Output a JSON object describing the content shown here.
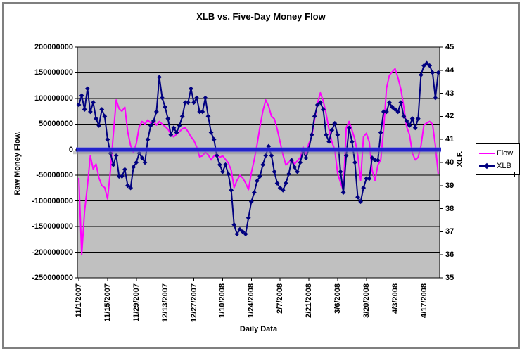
{
  "chart_data": {
    "type": "line",
    "title": "XLB vs. Five-Day Money Flow",
    "x_axis": {
      "label": "Daily Data",
      "tick_interval": 10,
      "tick_labels": [
        "11/1/2007",
        "11/15/2007",
        "11/29/2007",
        "12/13/2007",
        "12/27/2007",
        "1/10/2008",
        "1/24/2008",
        "2/7/2008",
        "2/21/2008",
        "3/6/2008",
        "3/20/2008",
        "4/3/2008",
        "4/17/2008"
      ]
    },
    "y_left": {
      "label": "Raw Money Flow.",
      "min": -250000000,
      "max": 200000000,
      "tick_step": 50000000,
      "tick_labels": [
        "200000000",
        "150000000",
        "100000000",
        "50000000",
        "0",
        "-50000000",
        "-100000000",
        "-150000000",
        "-200000000",
        "-250000000"
      ]
    },
    "y_right": {
      "label": "XLF.",
      "min": 35,
      "max": 45,
      "tick_step": 1,
      "tick_labels": [
        "45",
        "44",
        "43",
        "42",
        "41",
        "40",
        "39",
        "38",
        "37",
        "36",
        "35"
      ]
    },
    "grid": true,
    "plot_bg": "#C0C0C0",
    "grid_color": "#000000",
    "zero_line": {
      "value": 0,
      "color": "#2222CC",
      "halo": "#5b5be4"
    },
    "legend": {
      "position": "right",
      "entries": [
        {
          "name": "Flow",
          "color": "#FF00FF",
          "marker": "none"
        },
        {
          "name": "XLB",
          "color": "#000080",
          "marker": "diamond"
        }
      ]
    },
    "x": [
      "11/1/2007",
      "11/2/2007",
      "11/5/2007",
      "11/6/2007",
      "11/7/2007",
      "11/8/2007",
      "11/9/2007",
      "11/12/2007",
      "11/13/2007",
      "11/14/2007",
      "11/15/2007",
      "11/16/2007",
      "11/19/2007",
      "11/20/2007",
      "11/21/2007",
      "11/22/2007",
      "11/23/2007",
      "11/26/2007",
      "11/27/2007",
      "11/28/2007",
      "11/29/2007",
      "11/30/2007",
      "12/3/2007",
      "12/4/2007",
      "12/5/2007",
      "12/6/2007",
      "12/7/2007",
      "12/10/2007",
      "12/11/2007",
      "12/12/2007",
      "12/13/2007",
      "12/14/2007",
      "12/17/2007",
      "12/18/2007",
      "12/19/2007",
      "12/20/2007",
      "12/21/2007",
      "12/24/2007",
      "12/25/2007",
      "12/26/2007",
      "12/27/2007",
      "12/28/2007",
      "12/31/2007",
      "1/1/2008",
      "1/2/2008",
      "1/3/2008",
      "1/4/2008",
      "1/7/2008",
      "1/8/2008",
      "1/9/2008",
      "1/10/2008",
      "1/11/2008",
      "1/14/2008",
      "1/15/2008",
      "1/16/2008",
      "1/17/2008",
      "1/18/2008",
      "1/21/2008",
      "1/22/2008",
      "1/23/2008",
      "1/24/2008",
      "1/25/2008",
      "1/28/2008",
      "1/29/2008",
      "1/30/2008",
      "1/31/2008",
      "2/1/2008",
      "2/4/2008",
      "2/5/2008",
      "2/6/2008",
      "2/7/2008",
      "2/8/2008",
      "2/11/2008",
      "2/12/2008",
      "2/13/2008",
      "2/14/2008",
      "2/15/2008",
      "2/18/2008",
      "2/19/2008",
      "2/20/2008",
      "2/21/2008",
      "2/22/2008",
      "2/25/2008",
      "2/26/2008",
      "2/27/2008",
      "2/28/2008",
      "2/29/2008",
      "3/3/2008",
      "3/4/2008",
      "3/5/2008",
      "3/6/2008",
      "3/7/2008",
      "3/10/2008",
      "3/11/2008",
      "3/12/2008",
      "3/13/2008",
      "3/14/2008",
      "3/17/2008",
      "3/18/2008",
      "3/19/2008",
      "3/20/2008",
      "3/21/2008",
      "3/24/2008",
      "3/25/2008",
      "3/26/2008",
      "3/27/2008",
      "3/28/2008",
      "3/31/2008",
      "4/1/2008",
      "4/2/2008",
      "4/3/2008",
      "4/4/2008",
      "4/7/2008",
      "4/8/2008",
      "4/9/2008",
      "4/10/2008",
      "4/11/2008",
      "4/14/2008",
      "4/15/2008",
      "4/16/2008",
      "4/17/2008",
      "4/18/2008",
      "4/21/2008",
      "4/22/2008",
      "4/23/2008",
      "4/24/2008"
    ],
    "series": [
      {
        "name": "Flow",
        "axis": "left",
        "color": "#FF00FF",
        "marker": "none",
        "values": [
          -55000000,
          -205000000,
          -120000000,
          -70000000,
          -12000000,
          -38000000,
          -28000000,
          -55000000,
          -70000000,
          -74000000,
          -96000000,
          -40000000,
          30000000,
          97000000,
          80000000,
          75000000,
          83000000,
          35000000,
          8000000,
          -5000000,
          12000000,
          45000000,
          55000000,
          50000000,
          58000000,
          52000000,
          55000000,
          48000000,
          55000000,
          50000000,
          45000000,
          40000000,
          30000000,
          25000000,
          30000000,
          35000000,
          41000000,
          43000000,
          35000000,
          25000000,
          18000000,
          5000000,
          -14000000,
          -12000000,
          -5000000,
          -10000000,
          -20000000,
          -12000000,
          -8000000,
          -15000000,
          -12000000,
          -19000000,
          -26000000,
          -40000000,
          -74000000,
          -60000000,
          -50000000,
          -55000000,
          -65000000,
          -78000000,
          -45000000,
          -20000000,
          10000000,
          45000000,
          75000000,
          97000000,
          85000000,
          65000000,
          60000000,
          40000000,
          15000000,
          -10000000,
          -30000000,
          -25000000,
          -18000000,
          -28000000,
          -22000000,
          -15000000,
          5000000,
          -8000000,
          12000000,
          25000000,
          60000000,
          90000000,
          111000000,
          95000000,
          70000000,
          40000000,
          15000000,
          0,
          -46000000,
          -64000000,
          -80000000,
          43000000,
          55000000,
          38000000,
          20000000,
          -10000000,
          -60000000,
          25000000,
          32000000,
          15000000,
          -40000000,
          -60000000,
          -30000000,
          -20000000,
          40000000,
          120000000,
          145000000,
          152000000,
          158000000,
          140000000,
          118000000,
          84000000,
          45000000,
          29000000,
          -7000000,
          -20000000,
          -15000000,
          8000000,
          48000000,
          52000000,
          55000000,
          50000000,
          8000000,
          -48000000
        ]
      },
      {
        "name": "XLB",
        "axis": "right",
        "color": "#000080",
        "marker": "diamond",
        "values": [
          42.5,
          42.9,
          42.3,
          43.2,
          42.2,
          42.6,
          41.9,
          41.6,
          42.3,
          42.0,
          41.0,
          40.4,
          39.9,
          40.3,
          39.4,
          39.4,
          39.7,
          39.0,
          38.9,
          39.8,
          40.0,
          40.4,
          40.2,
          40.0,
          41.0,
          41.6,
          41.8,
          42.2,
          43.7,
          42.8,
          42.4,
          41.9,
          41.2,
          41.5,
          41.3,
          41.6,
          42.0,
          42.6,
          42.6,
          43.2,
          42.6,
          42.8,
          42.2,
          42.2,
          42.8,
          42.0,
          41.3,
          41.0,
          40.3,
          39.9,
          39.6,
          39.9,
          39.5,
          38.8,
          37.3,
          36.9,
          37.1,
          37.0,
          36.9,
          37.6,
          38.3,
          38.7,
          39.2,
          39.4,
          39.9,
          40.3,
          40.7,
          40.3,
          39.6,
          39.1,
          38.9,
          38.8,
          39.1,
          39.5,
          40.1,
          39.8,
          39.6,
          40.0,
          40.5,
          40.2,
          40.6,
          41.2,
          42.0,
          42.5,
          42.6,
          42.3,
          41.2,
          40.9,
          41.4,
          41.7,
          41.2,
          39.6,
          38.7,
          40.3,
          41.5,
          40.9,
          40.0,
          38.5,
          38.3,
          38.9,
          39.3,
          39.3,
          40.2,
          40.1,
          40.1,
          41.3,
          42.2,
          42.2,
          42.6,
          42.4,
          42.3,
          42.2,
          42.6,
          42.0,
          41.8,
          41.6,
          41.9,
          41.5,
          41.9,
          43.8,
          44.2,
          44.3,
          44.2,
          43.9,
          42.8,
          43.9
        ]
      }
    ]
  }
}
